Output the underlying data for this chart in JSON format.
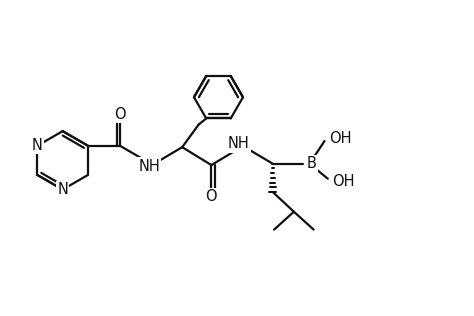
{
  "bg_color": "#ffffff",
  "line_color": "#111111",
  "line_width": 1.6,
  "font_size": 10.5,
  "fig_width": 4.74,
  "fig_height": 3.16,
  "dpi": 100,
  "xlim": [
    0,
    10
  ],
  "ylim": [
    0,
    6.5
  ]
}
